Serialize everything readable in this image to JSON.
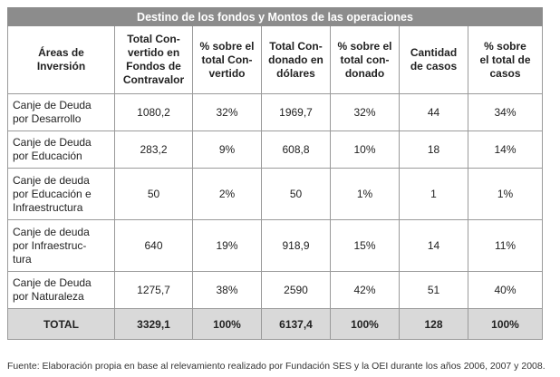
{
  "table": {
    "title": "Destino de los fondos y Montos de las operaciones",
    "headers": [
      "Áreas de\nInversión",
      "Total Con-\nvertido en\nFondos de\nContravalor",
      "% sobre el\ntotal Con-\nvertido",
      "Total Con-\ndonado en\ndólares",
      "% sobre el\ntotal con-\ndonado",
      "Cantidad\nde casos",
      "% sobre\nel total de\ncasos"
    ],
    "rows": [
      [
        "Canje de Deuda\npor Desarrollo",
        "1080,2",
        "32%",
        "1969,7",
        "32%",
        "44",
        "34%"
      ],
      [
        "Canje de Deuda\npor Educación",
        "283,2",
        "9%",
        "608,8",
        "10%",
        "18",
        "14%"
      ],
      [
        "Canje de deuda\npor Educación e\nInfraestructura",
        "50",
        "2%",
        "50",
        "1%",
        "1",
        "1%"
      ],
      [
        "Canje de deuda\npor Infraestruc-\ntura",
        "640",
        "19%",
        "918,9",
        "15%",
        "14",
        "11%"
      ],
      [
        "Canje de Deuda\npor Naturaleza",
        "1275,7",
        "38%",
        "2590",
        "42%",
        "51",
        "40%"
      ]
    ],
    "total": [
      "TOTAL",
      "3329,1",
      "100%",
      "6137,4",
      "100%",
      "128",
      "100%"
    ]
  },
  "footnote": "Fuente: Elaboración propia en base al relevamiento realizado por Fundación SES y la OEI durante los años 2006, 2007 y 2008."
}
